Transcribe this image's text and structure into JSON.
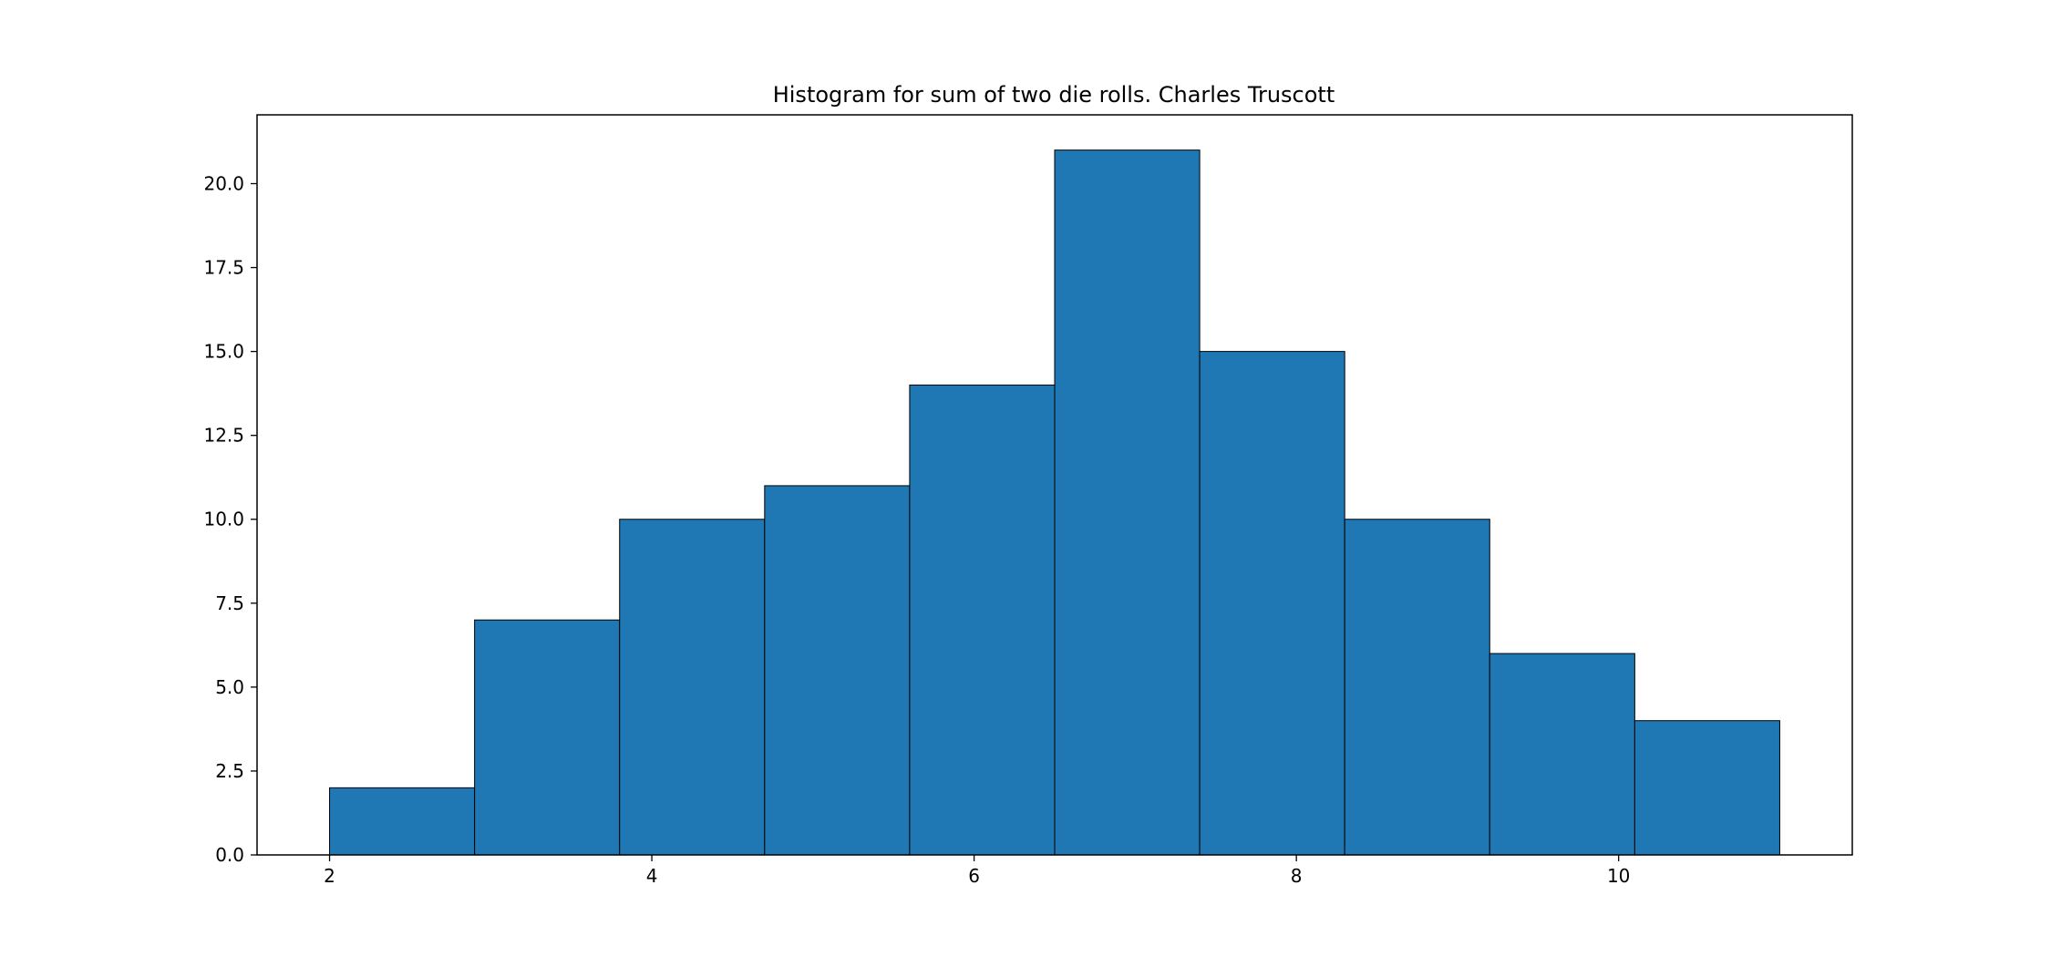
{
  "chart_data": {
    "type": "bar",
    "title": "Histogram for sum of two die rolls. Charles Truscott",
    "xlabel": "",
    "ylabel": "",
    "bin_edges": [
      2.0,
      2.9,
      3.8,
      4.7,
      5.6,
      6.5,
      7.4,
      8.3,
      9.2,
      10.1,
      11.0
    ],
    "values": [
      2,
      7,
      10,
      11,
      14,
      21,
      15,
      10,
      6,
      4
    ],
    "xlim": [
      1.55,
      11.45
    ],
    "ylim": [
      0,
      22.05
    ],
    "x_ticks": [
      2,
      4,
      6,
      8,
      10
    ],
    "x_tick_labels": [
      "2",
      "4",
      "6",
      "8",
      "10"
    ],
    "y_ticks": [
      0,
      2.5,
      5,
      7.5,
      10,
      12.5,
      15,
      17.5,
      20
    ],
    "y_tick_labels": [
      "0.0",
      "2.5",
      "5.0",
      "7.5",
      "10.0",
      "12.5",
      "15.0",
      "17.5",
      "20.0"
    ],
    "grid": false,
    "legend": "none",
    "colors": {
      "bar_fill": "#1f77b4",
      "bar_edge": "#000000"
    }
  }
}
